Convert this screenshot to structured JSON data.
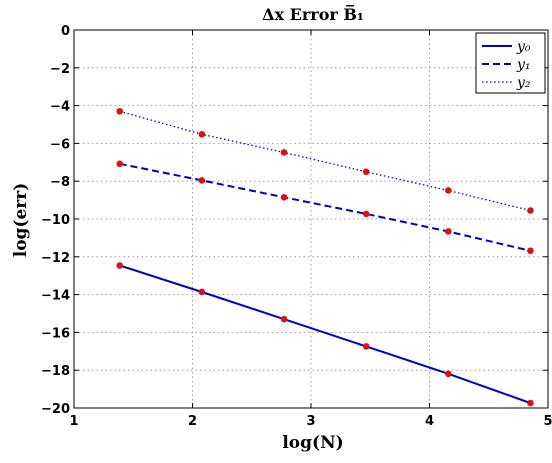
{
  "chart_data": {
    "type": "line",
    "title": "Δx Error B̅₁",
    "xlabel": "log(N)",
    "ylabel": "log(err)",
    "xlim": [
      1,
      5
    ],
    "ylim": [
      -20,
      0
    ],
    "xticks": [
      1,
      2,
      3,
      4,
      5
    ],
    "yticks": [
      0,
      -2,
      -4,
      -6,
      -8,
      -10,
      -12,
      -14,
      -16,
      -18,
      -20
    ],
    "xtick_labels": [
      "1",
      "2",
      "3",
      "4",
      "5"
    ],
    "ytick_labels": [
      "0",
      "−2",
      "−4",
      "−6",
      "−8",
      "−10",
      "−12",
      "−14",
      "−16",
      "−18",
      "−20"
    ],
    "grid": true,
    "legend_position": "top-right",
    "x": [
      1.386,
      2.079,
      2.773,
      3.466,
      4.159,
      4.852
    ],
    "series": [
      {
        "name": "y0",
        "legend_label": "y₀",
        "values": [
          -12.46,
          -13.86,
          -15.3,
          -16.74,
          -18.19,
          -19.74
        ],
        "color": "#0000cc",
        "dash": "solid"
      },
      {
        "name": "y1",
        "legend_label": "y₁",
        "values": [
          -7.08,
          -7.96,
          -8.85,
          -9.73,
          -10.66,
          -11.68
        ],
        "color": "#0000cc",
        "dash": "dashed"
      },
      {
        "name": "y2",
        "legend_label": "y₂",
        "values": [
          -4.3,
          -5.52,
          -6.48,
          -7.5,
          -8.49,
          -9.55
        ],
        "color": "#0000cc",
        "dash": "dotted"
      }
    ],
    "marker_color": "#dd1111"
  }
}
